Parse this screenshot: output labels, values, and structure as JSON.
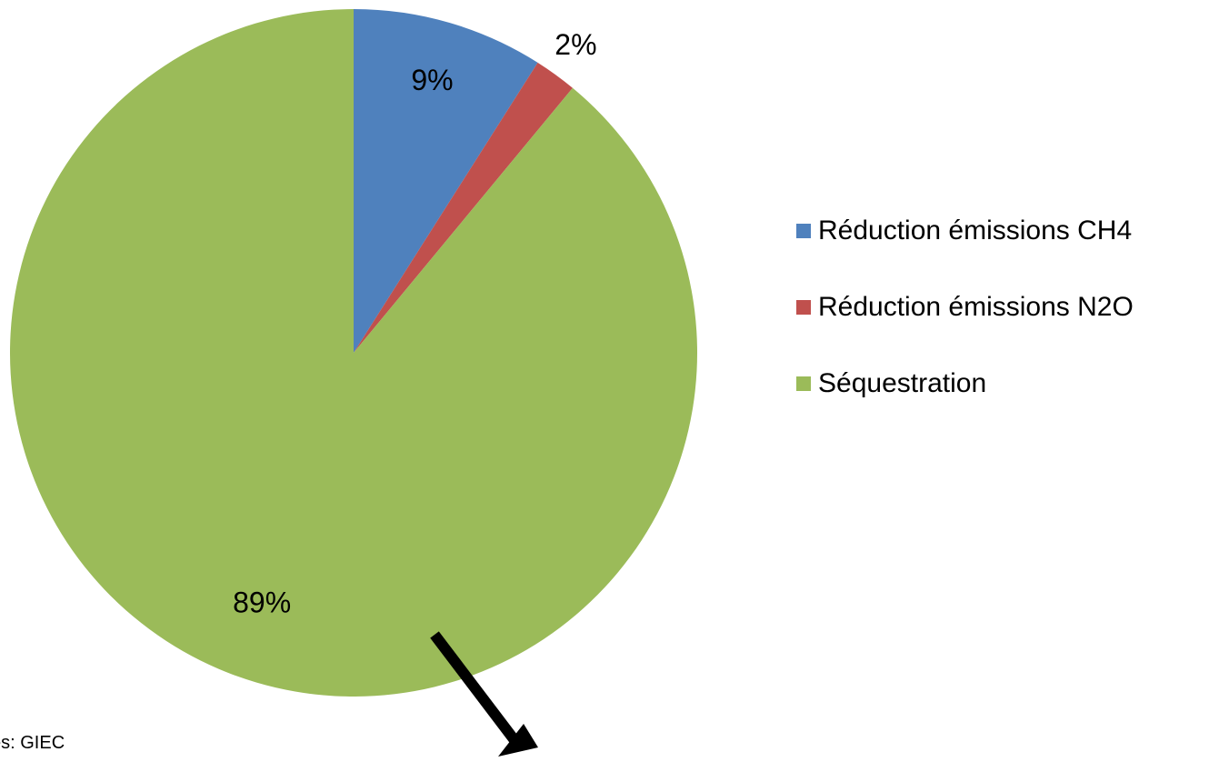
{
  "chart_data": {
    "type": "pie",
    "slices": [
      {
        "label": "Réduction émissions CH4",
        "value": 9,
        "display": "9%",
        "color": "#4f81bd"
      },
      {
        "label": "Réduction émissions N2O",
        "value": 2,
        "display": "2%",
        "color": "#c0504d"
      },
      {
        "label": "Séquestration",
        "value": 89,
        "display": "89%",
        "color": "#9bbb59"
      }
    ],
    "legend_position": "right"
  },
  "legend": {
    "items": [
      {
        "label": "Réduction émissions CH4",
        "color": "#4f81bd"
      },
      {
        "label": "Réduction émissions N2O",
        "color": "#c0504d"
      },
      {
        "label": "Séquestration",
        "color": "#9bbb59"
      }
    ]
  },
  "source_note": "es: GIEC",
  "annotation": {
    "arrow_color": "#000000"
  }
}
